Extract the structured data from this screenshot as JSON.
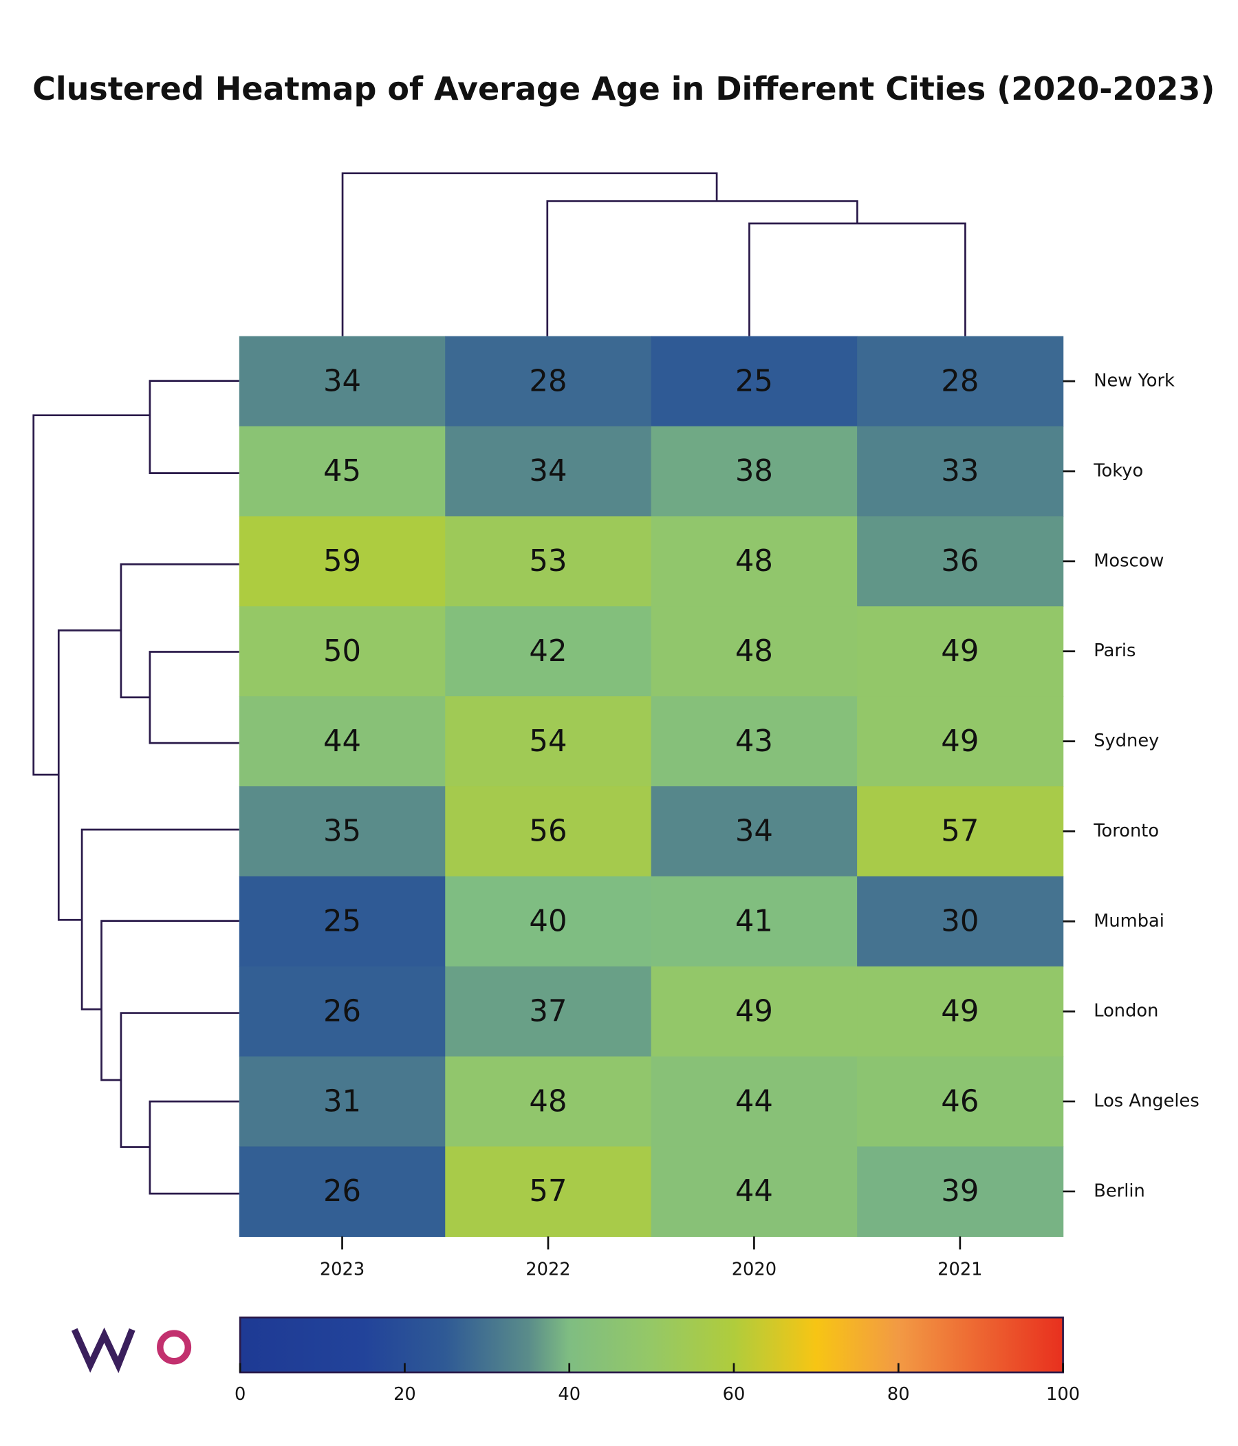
{
  "chart_data": {
    "type": "heatmap",
    "title": "Clustered Heatmap of Average Age in Different Cities (2020-2023)",
    "x": [
      "2023",
      "2022",
      "2020",
      "2021"
    ],
    "y": [
      "New York",
      "Tokyo",
      "Moscow",
      "Paris",
      "Sydney",
      "Toronto",
      "Mumbai",
      "London",
      "Los Angeles",
      "Berlin"
    ],
    "values": [
      [
        34,
        28,
        25,
        28
      ],
      [
        45,
        34,
        38,
        33
      ],
      [
        59,
        53,
        48,
        36
      ],
      [
        50,
        42,
        48,
        49
      ],
      [
        44,
        54,
        43,
        49
      ],
      [
        35,
        56,
        34,
        57
      ],
      [
        25,
        40,
        41,
        30
      ],
      [
        26,
        37,
        49,
        49
      ],
      [
        31,
        48,
        44,
        46
      ],
      [
        26,
        57,
        44,
        39
      ]
    ],
    "colorbar": {
      "lim": [
        0,
        100
      ],
      "ticks": [
        0,
        20,
        40,
        60,
        80,
        100
      ],
      "colors": [
        [
          0,
          "#1e3a94"
        ],
        [
          15,
          "#22439a"
        ],
        [
          25,
          "#2f5a95"
        ],
        [
          35,
          "#5a8c8a"
        ],
        [
          40,
          "#7fbd82"
        ],
        [
          50,
          "#95c866"
        ],
        [
          60,
          "#b0cc3c"
        ],
        [
          70,
          "#f7c514"
        ],
        [
          80,
          "#f29a44"
        ],
        [
          100,
          "#e8301e"
        ]
      ]
    }
  }
}
